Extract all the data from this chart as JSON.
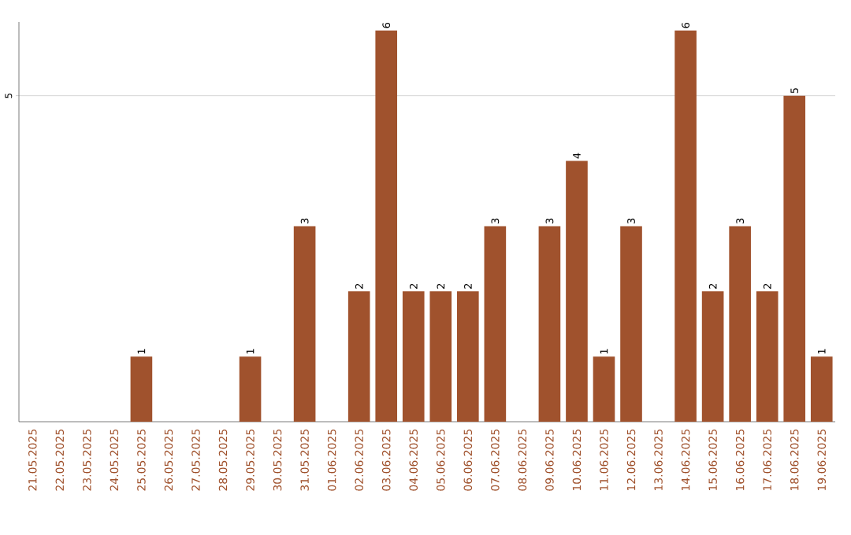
{
  "chart_data": {
    "type": "bar",
    "categories": [
      "21.05.2025",
      "22.05.2025",
      "23.05.2025",
      "24.05.2025",
      "25.05.2025",
      "26.05.2025",
      "27.05.2025",
      "28.05.2025",
      "29.05.2025",
      "30.05.2025",
      "31.05.2025",
      "01.06.2025",
      "02.06.2025",
      "03.06.2025",
      "04.06.2025",
      "05.06.2025",
      "06.06.2025",
      "07.06.2025",
      "08.06.2025",
      "09.06.2025",
      "10.06.2025",
      "11.06.2025",
      "12.06.2025",
      "13.06.2025",
      "14.06.2025",
      "15.06.2025",
      "16.06.2025",
      "17.06.2025",
      "18.06.2025",
      "19.06.2025"
    ],
    "values": [
      0,
      0,
      0,
      0,
      1,
      0,
      0,
      0,
      1,
      0,
      3,
      0,
      2,
      6,
      2,
      2,
      2,
      3,
      0,
      3,
      4,
      1,
      3,
      0,
      6,
      2,
      3,
      2,
      5,
      1
    ],
    "value_labels": [
      null,
      null,
      null,
      null,
      "1",
      null,
      null,
      null,
      "1",
      null,
      "3",
      null,
      "2",
      "6",
      "2",
      "2",
      "2",
      "3",
      null,
      "3",
      "4",
      "1",
      "3",
      null,
      "6",
      "2",
      "3",
      "2",
      "5",
      "1"
    ],
    "color": "#a0522d",
    "ylim": [
      0,
      6.13
    ],
    "yticks": [
      5
    ],
    "grid": "y"
  }
}
